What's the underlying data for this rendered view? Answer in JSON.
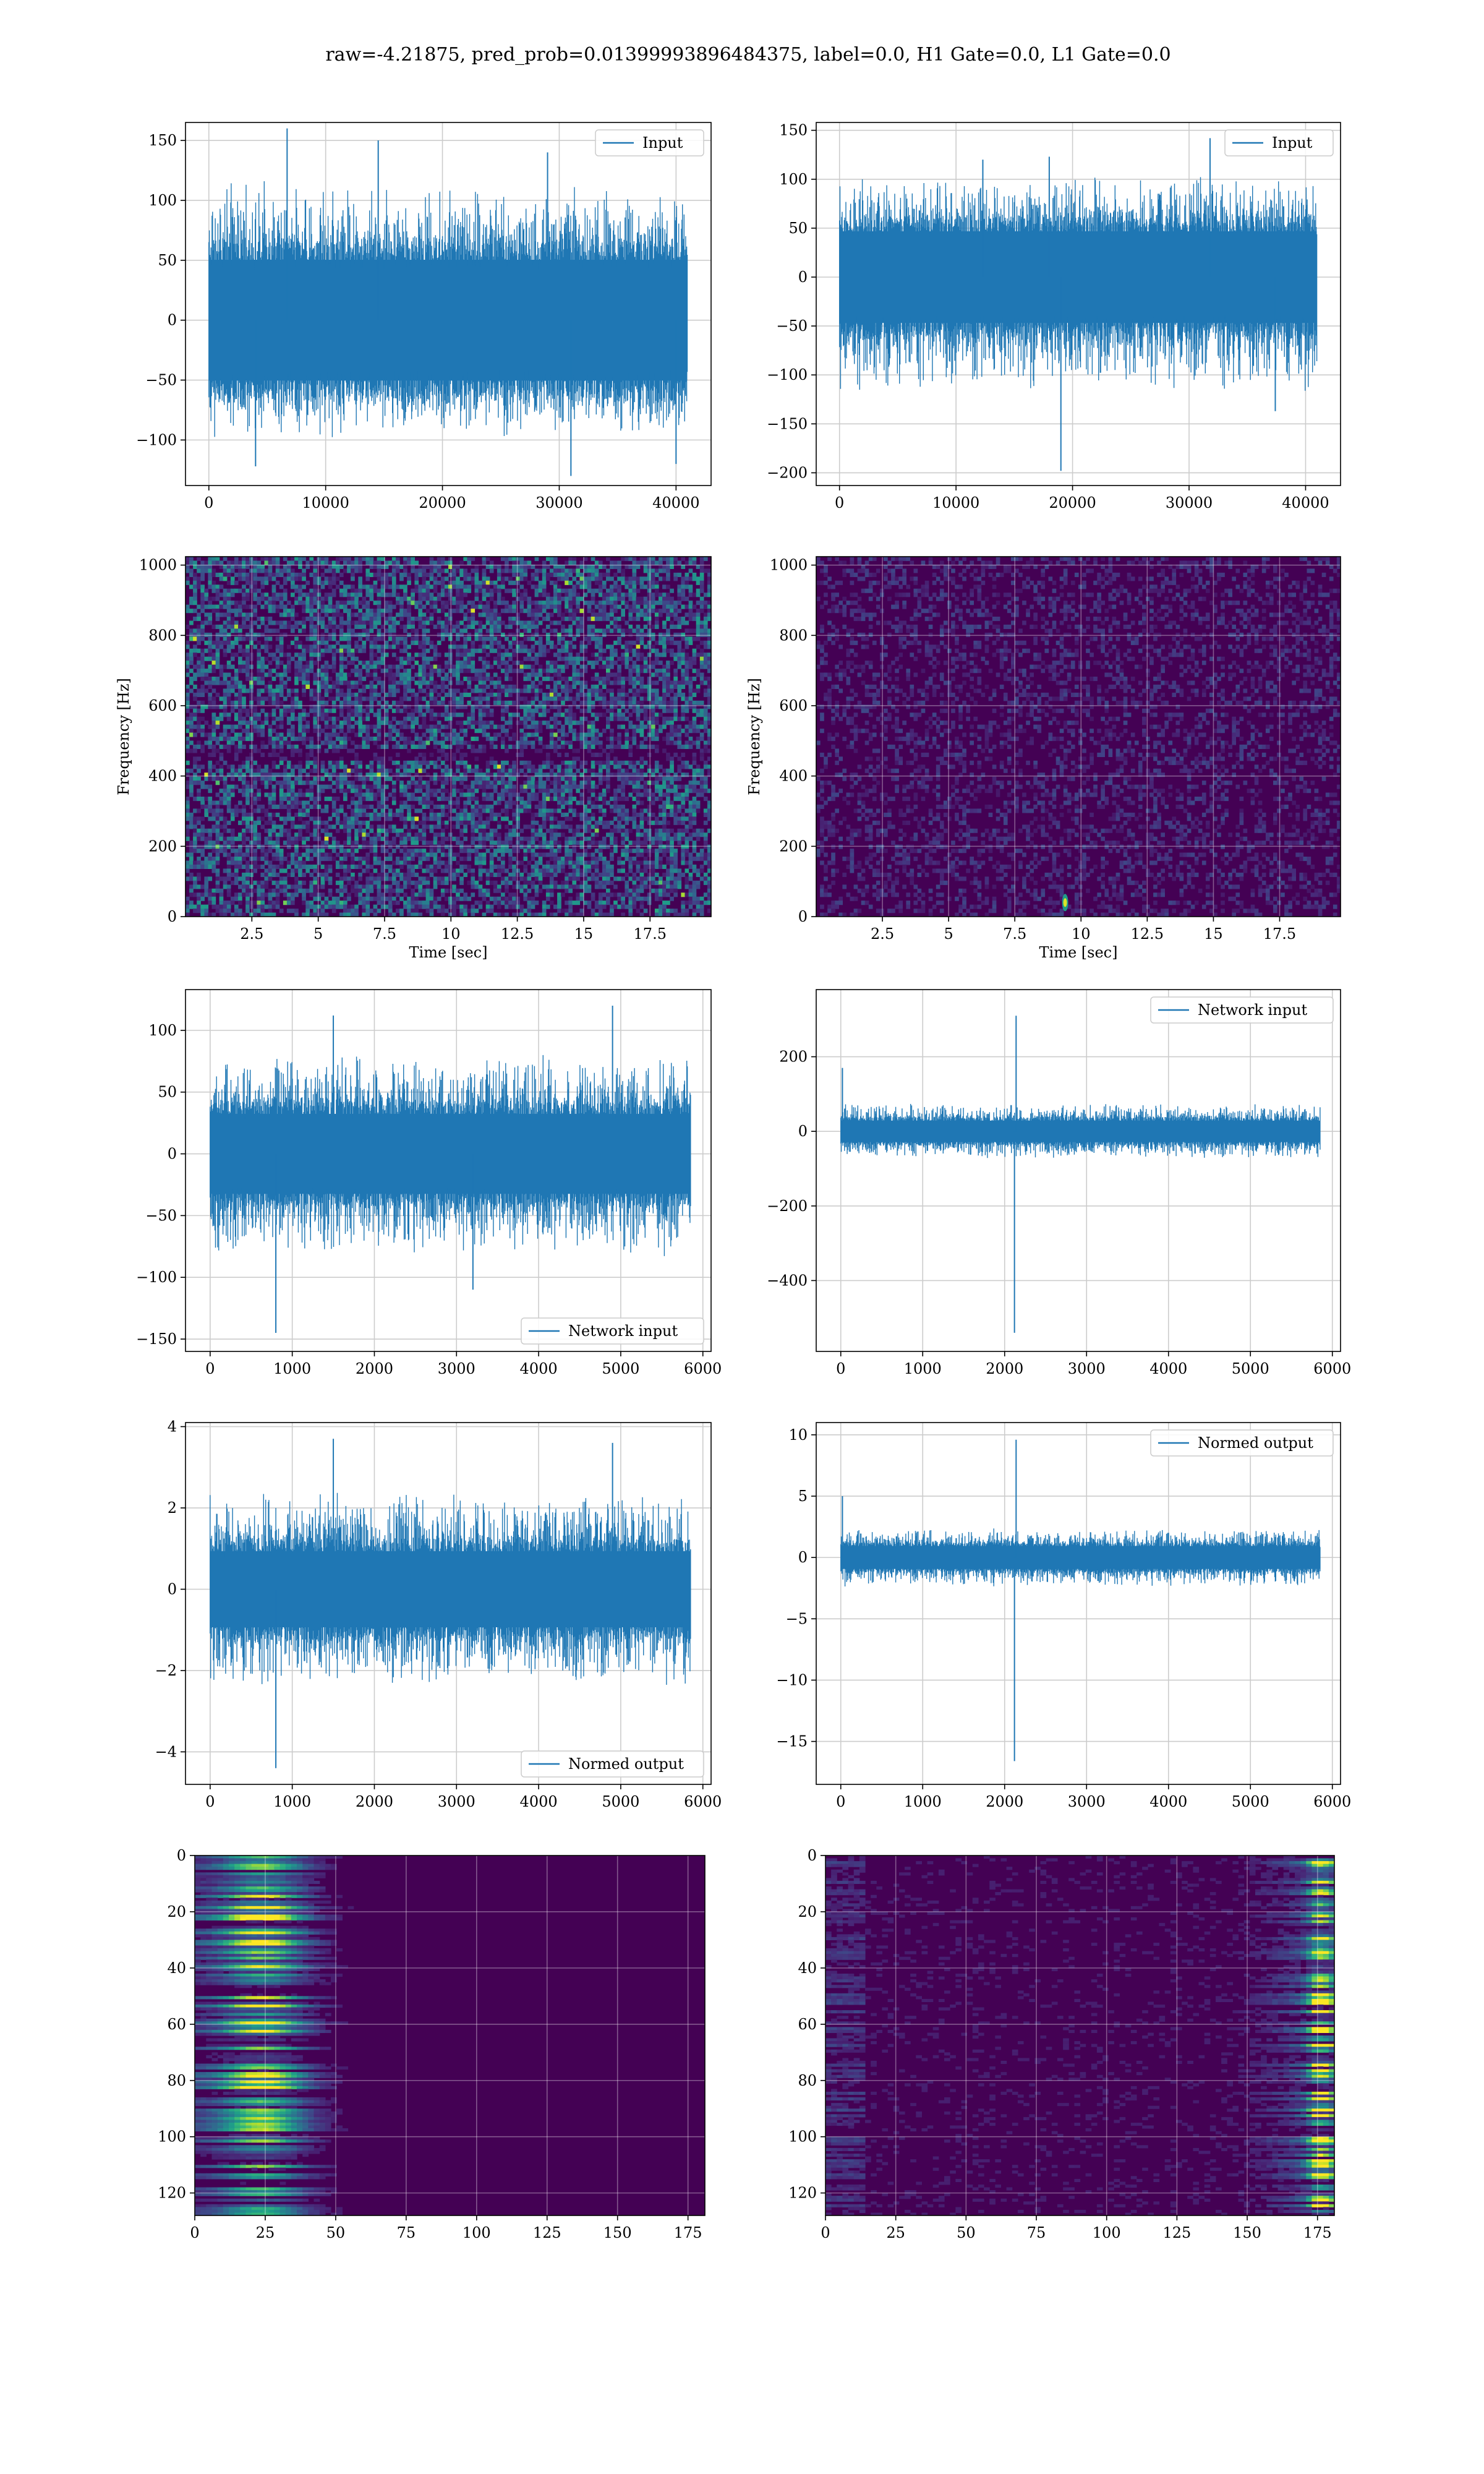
{
  "suptitle": "raw=-4.21875, pred_prob=0.01399993896484375, label=0.0, H1 Gate=0.0, L1 Gate=0.0",
  "colors": {
    "line": "#1f77b4",
    "grid": "#cccccc",
    "spec_bg": "#440154",
    "viridis": [
      "#440154",
      "#482878",
      "#3e4989",
      "#31688e",
      "#26828e",
      "#1f9e89",
      "#35b779",
      "#6ece58",
      "#b5de2b",
      "#fde725"
    ]
  },
  "chart_data": [
    {
      "id": "h1-input",
      "type": "line",
      "legend": "Input",
      "legend_loc": "upper right",
      "xlim": [
        -2000,
        43000
      ],
      "ylim": [
        -138,
        165
      ],
      "xticks": [
        0,
        10000,
        20000,
        30000,
        40000
      ],
      "yticks": [
        -100,
        -50,
        0,
        50,
        100,
        150
      ],
      "grid": true,
      "series": [
        {
          "x_range": [
            0,
            40960
          ],
          "band": [
            -70,
            70
          ],
          "min": -130,
          "max": 160,
          "spikes": [
            [
              6700,
              160
            ],
            [
              14500,
              150
            ],
            [
              29000,
              140
            ],
            [
              31000,
              -130
            ],
            [
              40000,
              -120
            ],
            [
              4000,
              -122
            ]
          ]
        }
      ]
    },
    {
      "id": "l1-input",
      "type": "line",
      "legend": "Input",
      "legend_loc": "upper right",
      "xlim": [
        -2000,
        43000
      ],
      "ylim": [
        -213,
        158
      ],
      "xticks": [
        0,
        10000,
        20000,
        30000,
        40000
      ],
      "yticks": [
        -200,
        -150,
        -100,
        -50,
        0,
        50,
        100,
        150
      ],
      "grid": true,
      "series": [
        {
          "x_range": [
            0,
            40960
          ],
          "band": [
            -65,
            65
          ],
          "min": -198,
          "max": 142,
          "spikes": [
            [
              19000,
              -198
            ],
            [
              31800,
              142
            ],
            [
              37400,
              -137
            ],
            [
              12300,
              120
            ],
            [
              18000,
              123
            ]
          ]
        }
      ]
    },
    {
      "id": "h1-spectrogram",
      "type": "heatmap",
      "xlabel": "Time [sec]",
      "ylabel": "Frequency [Hz]",
      "xlim": [
        0,
        19.8
      ],
      "ylim": [
        0,
        1024
      ],
      "xticks": [
        2.5,
        5.0,
        7.5,
        10.0,
        12.5,
        15.0,
        17.5
      ],
      "yticks": [
        0,
        200,
        400,
        600,
        800,
        1000
      ],
      "grid": true,
      "intensity": "speckled"
    },
    {
      "id": "l1-spectrogram",
      "type": "heatmap",
      "xlabel": "Time [sec]",
      "ylabel": "Frequency [Hz]",
      "xlim": [
        0,
        19.8
      ],
      "ylim": [
        0,
        1024
      ],
      "xticks": [
        2.5,
        5.0,
        7.5,
        10.0,
        12.5,
        15.0,
        17.5
      ],
      "yticks": [
        0,
        200,
        400,
        600,
        800,
        1000
      ],
      "grid": true,
      "intensity": "dark",
      "hotspot": [
        9.4,
        40
      ]
    },
    {
      "id": "h1-network-input",
      "type": "line",
      "legend": "Network input",
      "legend_loc": "lower right",
      "xlim": [
        -300,
        6100
      ],
      "ylim": [
        -160,
        133
      ],
      "xticks": [
        0,
        1000,
        2000,
        3000,
        4000,
        5000,
        6000
      ],
      "yticks": [
        -150,
        -100,
        -50,
        0,
        50,
        100
      ],
      "grid": true,
      "series": [
        {
          "x_range": [
            0,
            5850
          ],
          "band": [
            -45,
            45
          ],
          "min": -145,
          "max": 120,
          "spikes": [
            [
              800,
              -145
            ],
            [
              4900,
              120
            ],
            [
              1500,
              112
            ],
            [
              3200,
              -110
            ]
          ]
        }
      ]
    },
    {
      "id": "l1-network-input",
      "type": "line",
      "legend": "Network input",
      "legend_loc": "upper right",
      "xlim": [
        -300,
        6100
      ],
      "ylim": [
        -590,
        380
      ],
      "xticks": [
        0,
        1000,
        2000,
        3000,
        4000,
        5000,
        6000
      ],
      "yticks": [
        -400,
        -200,
        0,
        200
      ],
      "grid": true,
      "series": [
        {
          "x_range": [
            0,
            5850
          ],
          "band": [
            -40,
            40
          ],
          "min": -540,
          "max": 310,
          "spikes": [
            [
              2120,
              -540
            ],
            [
              2140,
              310
            ],
            [
              20,
              170
            ]
          ]
        }
      ]
    },
    {
      "id": "h1-normed-output",
      "type": "line",
      "legend": "Normed output",
      "legend_loc": "lower right",
      "xlim": [
        -300,
        6100
      ],
      "ylim": [
        -4.8,
        4.1
      ],
      "xticks": [
        0,
        1000,
        2000,
        3000,
        4000,
        5000,
        6000
      ],
      "yticks": [
        -4,
        -2,
        0,
        2,
        4
      ],
      "grid": true,
      "series": [
        {
          "x_range": [
            0,
            5850
          ],
          "band": [
            -1.3,
            1.3
          ],
          "min": -4.4,
          "max": 3.7,
          "spikes": [
            [
              800,
              -4.4
            ],
            [
              1500,
              3.7
            ],
            [
              4900,
              3.6
            ]
          ]
        }
      ]
    },
    {
      "id": "l1-normed-output",
      "type": "line",
      "legend": "Normed output",
      "legend_loc": "upper right",
      "xlim": [
        -300,
        6100
      ],
      "ylim": [
        -18.5,
        11.0
      ],
      "xticks": [
        0,
        1000,
        2000,
        3000,
        4000,
        5000,
        6000
      ],
      "yticks": [
        -15,
        -10,
        -5,
        0,
        5,
        10
      ],
      "grid": true,
      "series": [
        {
          "x_range": [
            0,
            5850
          ],
          "band": [
            -1.3,
            1.3
          ],
          "min": -16.6,
          "max": 9.6,
          "spikes": [
            [
              2120,
              -16.6
            ],
            [
              2140,
              9.6
            ],
            [
              20,
              5
            ]
          ]
        }
      ]
    },
    {
      "id": "h1-feature-map",
      "type": "heatmap",
      "xlim": [
        0,
        181
      ],
      "ylim": [
        128,
        0
      ],
      "xticks": [
        0,
        25,
        50,
        75,
        100,
        125,
        150,
        175
      ],
      "yticks": [
        0,
        20,
        40,
        60,
        80,
        100,
        120
      ],
      "grid": true,
      "intensity": "left-bright"
    },
    {
      "id": "l1-feature-map",
      "type": "heatmap",
      "xlim": [
        0,
        181
      ],
      "ylim": [
        128,
        0
      ],
      "xticks": [
        0,
        25,
        50,
        75,
        100,
        125,
        150,
        175
      ],
      "yticks": [
        0,
        20,
        40,
        60,
        80,
        100,
        120
      ],
      "grid": true,
      "intensity": "right-bright"
    }
  ]
}
